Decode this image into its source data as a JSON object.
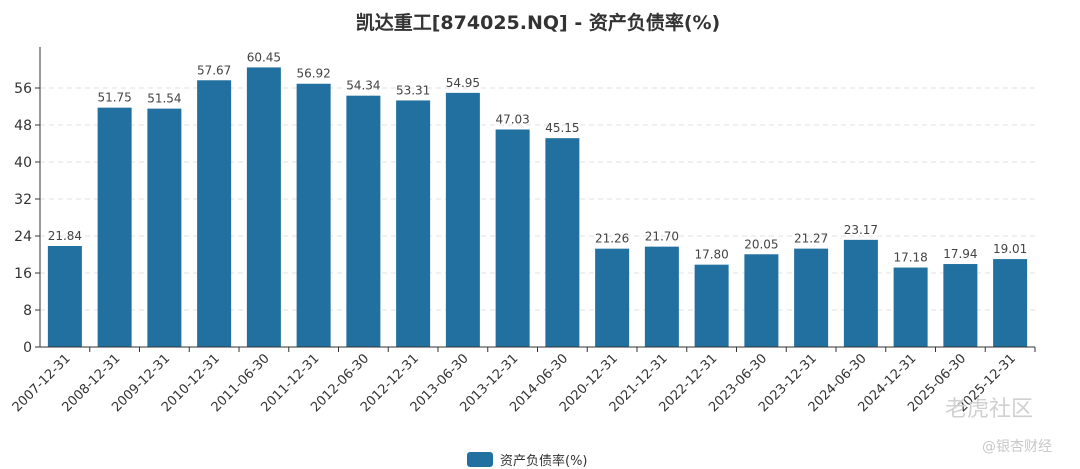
{
  "chart_data": {
    "type": "bar",
    "title": "凯达重工[874025.NQ] - 资产负债率(%)",
    "categories": [
      "2007-12-31",
      "2008-12-31",
      "2009-12-31",
      "2010-12-31",
      "2011-06-30",
      "2011-12-31",
      "2012-06-30",
      "2012-12-31",
      "2013-06-30",
      "2013-12-31",
      "2014-06-30",
      "2020-12-31",
      "2021-12-31",
      "2022-12-31",
      "2023-06-30",
      "2023-12-31",
      "2024-06-30",
      "2024-12-31",
      "2025-06-30",
      "2025-12-31"
    ],
    "series": [
      {
        "name": "资产负债率(%)",
        "values": [
          21.84,
          51.75,
          51.54,
          57.67,
          60.45,
          56.92,
          54.34,
          53.31,
          54.95,
          47.03,
          45.15,
          21.26,
          21.7,
          17.8,
          20.05,
          21.27,
          23.17,
          17.18,
          17.94,
          19.01
        ],
        "labels": [
          "21.84",
          "51.75",
          "51.54",
          "57.67",
          "60.45",
          "56.92",
          "54.34",
          "53.31",
          "54.95",
          "47.03",
          "45.15",
          "21.26",
          "21.70",
          "17.80",
          "20.05",
          "21.27",
          "23.17",
          "17.18",
          "17.94",
          "19.01"
        ]
      }
    ],
    "ylim": [
      0,
      64
    ],
    "yticks": [
      0,
      8,
      16,
      24,
      32,
      40,
      48,
      56
    ],
    "grid": true,
    "legend": "bottom-center",
    "colors": {
      "bar": "#22709f",
      "grid": "#e0e0e0",
      "axis": "#333333"
    }
  },
  "watermarks": {
    "main": "老虎社区",
    "secondary": "@银杏财经"
  }
}
